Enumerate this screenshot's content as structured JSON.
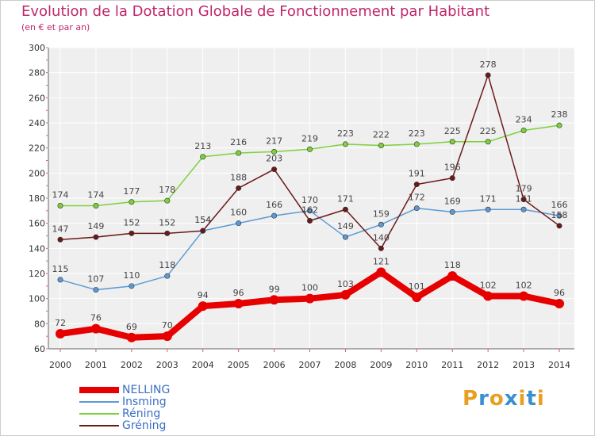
{
  "chart_data": {
    "type": "line",
    "title": "Evolution de la Dotation Globale de Fonctionnement par Habitant",
    "subtitle": "(en € et par an)",
    "xlabel": "",
    "ylabel": "",
    "ylim": [
      60,
      300
    ],
    "yticks": [
      60,
      80,
      100,
      120,
      140,
      160,
      180,
      200,
      220,
      240,
      260,
      280,
      300
    ],
    "categories": [
      "2000",
      "2001",
      "2002",
      "2003",
      "2004",
      "2005",
      "2006",
      "2007",
      "2008",
      "2009",
      "2010",
      "2011",
      "2012",
      "2013",
      "2014"
    ],
    "grid": true,
    "legend_position": "bottom-left",
    "series": [
      {
        "name": "NELLING",
        "color": "#e60000",
        "emphasis": true,
        "values": [
          72,
          76,
          69,
          70,
          94,
          96,
          99,
          100,
          103,
          121,
          101,
          118,
          102,
          102,
          96
        ]
      },
      {
        "name": "Insming",
        "color": "#5b9bd5",
        "emphasis": false,
        "values": [
          115,
          107,
          110,
          118,
          154,
          160,
          166,
          170,
          149,
          159,
          172,
          169,
          171,
          171,
          166
        ]
      },
      {
        "name": "Réning",
        "color": "#7dd13a",
        "emphasis": false,
        "values": [
          174,
          174,
          177,
          178,
          213,
          216,
          217,
          219,
          223,
          222,
          223,
          225,
          225,
          234,
          238
        ]
      },
      {
        "name": "Gréning",
        "color": "#6b1a1a",
        "emphasis": false,
        "values": [
          147,
          149,
          152,
          152,
          154,
          188,
          203,
          162,
          171,
          140,
          191,
          196,
          278,
          179,
          158
        ]
      }
    ]
  },
  "brand": {
    "text": "Proxiti",
    "letters": [
      "P",
      "r",
      "o",
      "x",
      "i",
      "t",
      "i"
    ],
    "colors": [
      "#e8a020",
      "#3a8fd0",
      "#e8a020",
      "#3a8fd0",
      "#e8a020",
      "#3a8fd0",
      "#e8a020"
    ]
  }
}
